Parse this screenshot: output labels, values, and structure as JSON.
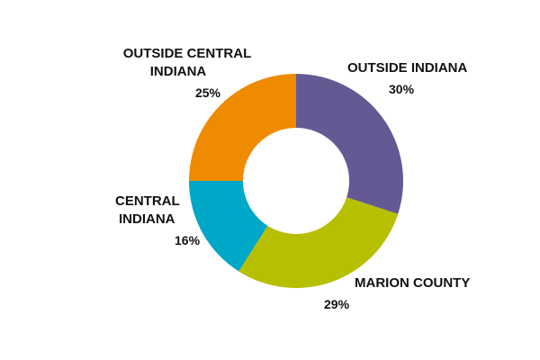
{
  "chart_data": {
    "type": "pie",
    "style": "donut",
    "start": "12 o'clock",
    "direction": "clockwise",
    "slices": [
      {
        "name": "OUTSIDE INDIANA",
        "name_lines": [
          "OUTSIDE INDIANA"
        ],
        "value": 30,
        "value_label": "30%",
        "color": "#645993"
      },
      {
        "name": "MARION COUNTY",
        "name_lines": [
          "MARION COUNTY"
        ],
        "value": 29,
        "value_label": "29%",
        "color": "#b6bf00"
      },
      {
        "name": "CENTRAL INDIANA",
        "name_lines": [
          "CENTRAL",
          "INDIANA"
        ],
        "value": 16,
        "value_label": "16%",
        "color": "#00a8c7"
      },
      {
        "name": "OUTSIDE CENTRAL INDIANA",
        "name_lines": [
          "OUTSIDE CENTRAL",
          "INDIANA"
        ],
        "value": 25,
        "value_label": "25%",
        "color": "#ee8b00"
      }
    ],
    "legend": "none"
  }
}
